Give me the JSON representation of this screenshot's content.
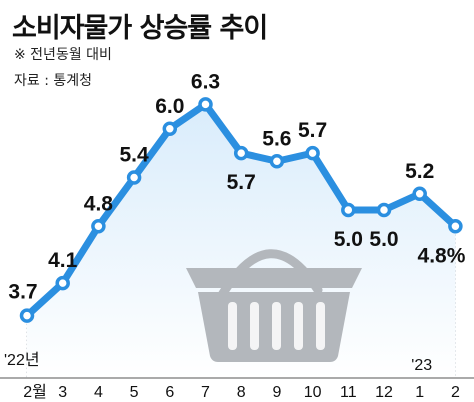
{
  "header": {
    "title": "소비자물가 상승률 추이",
    "note1": "※ 전년동월 대비",
    "note2": "자료 : 통계청"
  },
  "colors": {
    "line": "#2b8fe0",
    "marker_fill": "#ffffff",
    "area_top": "#d9ecfb",
    "area_bottom": "#ffffff",
    "basket": "#b3b7bc",
    "text": "#111111"
  },
  "icon": "shopping-basket-icon",
  "chart_data": {
    "type": "line",
    "categories": [
      "'22년 2월",
      "3",
      "4",
      "5",
      "6",
      "7",
      "8",
      "9",
      "10",
      "11",
      "12",
      "'23 1",
      "2"
    ],
    "x_labels": [
      "2월",
      "3",
      "4",
      "5",
      "6",
      "7",
      "8",
      "9",
      "10",
      "11",
      "12",
      "1",
      "2"
    ],
    "year_labels": [
      "'22년",
      "'23"
    ],
    "values": [
      3.7,
      4.1,
      4.8,
      5.4,
      6.0,
      6.3,
      5.7,
      5.6,
      5.7,
      5.0,
      5.0,
      5.2,
      4.8
    ],
    "value_labels": [
      "3.7",
      "4.1",
      "4.8",
      "5.4",
      "6.0",
      "6.3",
      "5.7",
      "5.6",
      "5.7",
      "5.0",
      "5.0",
      "5.2",
      "4.8%"
    ],
    "label_positions": [
      "below",
      "above",
      "above",
      "above",
      "above",
      "above",
      "below",
      "above",
      "above",
      "below",
      "below",
      "above",
      "below"
    ],
    "ylim": [
      3.4,
      6.6
    ],
    "grid": "vertical-dotted"
  }
}
